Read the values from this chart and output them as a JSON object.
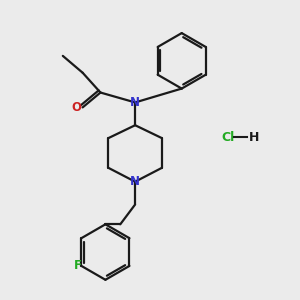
{
  "background_color": "#ebebeb",
  "bond_color": "#1a1a1a",
  "N_color": "#3333cc",
  "O_color": "#cc2222",
  "F_color": "#22aa22",
  "Cl_color": "#22aa22",
  "H_color": "#555555",
  "line_width": 1.6,
  "figsize": [
    3.0,
    3.0
  ],
  "dpi": 100,
  "xlim": [
    0,
    300
  ],
  "ylim": [
    0,
    300
  ]
}
